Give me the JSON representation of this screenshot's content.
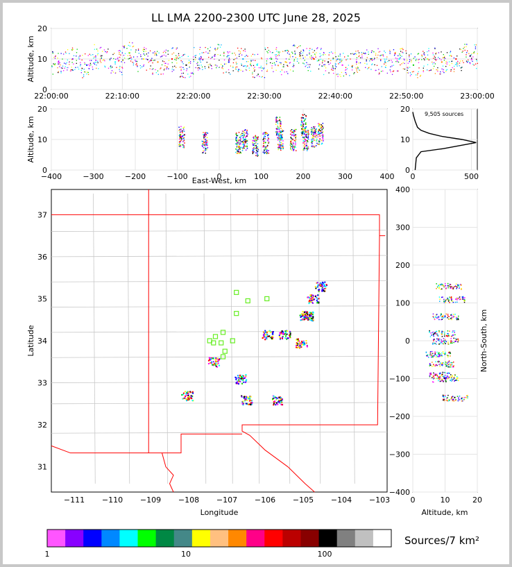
{
  "chart_data": [
    {
      "type": "scatter",
      "name": "time-height",
      "title": "LL LMA 2200-2300 UTC June 28, 2025",
      "ylabel": "Altitude, km",
      "xticks": [
        "22:00:00",
        "22:10:00",
        "22:20:00",
        "22:30:00",
        "22:40:00",
        "22:50:00",
        "23:00:00"
      ],
      "xlim_minutes": [
        0,
        60
      ],
      "ylim": [
        0,
        20
      ],
      "yticks": [
        0,
        10,
        20
      ],
      "points": [
        {
          "minute": 1,
          "alt": 9
        },
        {
          "minute": 3,
          "alt": 10
        },
        {
          "minute": 5,
          "alt": 8
        },
        {
          "minute": 7,
          "alt": 11
        },
        {
          "minute": 9,
          "alt": 9
        },
        {
          "minute": 11,
          "alt": 12
        },
        {
          "minute": 13,
          "alt": 10
        },
        {
          "minute": 15,
          "alt": 9
        },
        {
          "minute": 17,
          "alt": 10
        },
        {
          "minute": 19,
          "alt": 8
        },
        {
          "minute": 21,
          "alt": 10
        },
        {
          "minute": 23,
          "alt": 11
        },
        {
          "minute": 25,
          "alt": 9
        },
        {
          "minute": 27,
          "alt": 10
        },
        {
          "minute": 29,
          "alt": 8
        },
        {
          "minute": 31,
          "alt": 10
        },
        {
          "minute": 33,
          "alt": 9
        },
        {
          "minute": 35,
          "alt": 11
        },
        {
          "minute": 37,
          "alt": 10
        },
        {
          "minute": 39,
          "alt": 9
        },
        {
          "minute": 41,
          "alt": 8
        },
        {
          "minute": 43,
          "alt": 9
        },
        {
          "minute": 45,
          "alt": 10
        },
        {
          "minute": 47,
          "alt": 9
        },
        {
          "minute": 49,
          "alt": 10
        },
        {
          "minute": 51,
          "alt": 8
        },
        {
          "minute": 53,
          "alt": 10
        },
        {
          "minute": 55,
          "alt": 9
        },
        {
          "minute": 57,
          "alt": 10
        },
        {
          "minute": 59,
          "alt": 11
        }
      ]
    },
    {
      "type": "scatter",
      "name": "east-west-altitude",
      "xlabel": "East-West, km",
      "ylabel": "Altitude, km",
      "xlim": [
        -400,
        400
      ],
      "xticks": [
        -400,
        -300,
        -200,
        -100,
        0,
        100,
        200,
        300,
        400
      ],
      "ylim": [
        0,
        20
      ],
      "yticks": [
        0,
        10,
        20
      ],
      "points": [
        {
          "x": -90,
          "alt": 11
        },
        {
          "x": -35,
          "alt": 9
        },
        {
          "x": 45,
          "alt": 9
        },
        {
          "x": 60,
          "alt": 10
        },
        {
          "x": 85,
          "alt": 8
        },
        {
          "x": 110,
          "alt": 9
        },
        {
          "x": 140,
          "alt": 14
        },
        {
          "x": 145,
          "alt": 10
        },
        {
          "x": 175,
          "alt": 10
        },
        {
          "x": 200,
          "alt": 15
        },
        {
          "x": 205,
          "alt": 10
        },
        {
          "x": 225,
          "alt": 11
        },
        {
          "x": 240,
          "alt": 12
        }
      ]
    },
    {
      "type": "line",
      "name": "altitude-histogram",
      "annotation": "9,505 sources",
      "xlim": [
        0,
        550
      ],
      "xticks": [
        0,
        500
      ],
      "ylim": [
        0,
        20
      ],
      "yticks": [
        0,
        10,
        20
      ],
      "profile": [
        {
          "count": 20,
          "alt": 0
        },
        {
          "count": 30,
          "alt": 4
        },
        {
          "count": 70,
          "alt": 6
        },
        {
          "count": 260,
          "alt": 7
        },
        {
          "count": 400,
          "alt": 8
        },
        {
          "count": 540,
          "alt": 9
        },
        {
          "count": 420,
          "alt": 10
        },
        {
          "count": 250,
          "alt": 11
        },
        {
          "count": 140,
          "alt": 12
        },
        {
          "count": 70,
          "alt": 13
        },
        {
          "count": 40,
          "alt": 14
        },
        {
          "count": 20,
          "alt": 16
        },
        {
          "count": 5,
          "alt": 18
        },
        {
          "count": 0,
          "alt": 19
        }
      ]
    },
    {
      "type": "scatter",
      "name": "plan-view-map",
      "xlabel": "Longitude",
      "ylabel": "Latitude",
      "xlim": [
        -111.6,
        -102.8
      ],
      "xticks": [
        -111,
        -110,
        -109,
        -108,
        -107,
        -106,
        -105,
        -104,
        -103
      ],
      "ylim": [
        30.4,
        37.6
      ],
      "yticks": [
        31,
        32,
        33,
        34,
        35,
        36,
        37
      ],
      "clusters": [
        {
          "lon": -108.05,
          "lat": 32.7
        },
        {
          "lon": -107.35,
          "lat": 33.5
        },
        {
          "lon": -106.65,
          "lat": 33.1
        },
        {
          "lon": -106.5,
          "lat": 32.6
        },
        {
          "lon": -105.95,
          "lat": 34.15
        },
        {
          "lon": -105.5,
          "lat": 34.15
        },
        {
          "lon": -105.7,
          "lat": 32.6
        },
        {
          "lon": -105.05,
          "lat": 33.95
        },
        {
          "lon": -104.9,
          "lat": 34.6
        },
        {
          "lon": -104.75,
          "lat": 35.0
        },
        {
          "lon": -104.55,
          "lat": 35.3
        },
        {
          "lon": -104.95,
          "lat": 34.6
        }
      ],
      "stations": [
        {
          "lon": -106.75,
          "lat": 35.15
        },
        {
          "lon": -106.45,
          "lat": 34.95
        },
        {
          "lon": -105.95,
          "lat": 35.0
        },
        {
          "lon": -106.75,
          "lat": 34.65
        },
        {
          "lon": -107.1,
          "lat": 34.2
        },
        {
          "lon": -107.3,
          "lat": 34.1
        },
        {
          "lon": -107.45,
          "lat": 34.0
        },
        {
          "lon": -107.15,
          "lat": 33.95
        },
        {
          "lon": -106.85,
          "lat": 34.0
        },
        {
          "lon": -107.05,
          "lat": 33.75
        },
        {
          "lon": -107.1,
          "lat": 33.62
        },
        {
          "lon": -107.35,
          "lat": 33.95
        }
      ]
    },
    {
      "type": "scatter",
      "name": "north-south-altitude",
      "xlabel": "Altitude, km",
      "ylabel": "North-South, km",
      "xlim": [
        0,
        20
      ],
      "xticks": [
        0,
        10,
        20
      ],
      "ylim": [
        -400,
        400
      ],
      "yticks": [
        -400,
        -300,
        -200,
        -100,
        0,
        100,
        200,
        300,
        400
      ],
      "points": [
        {
          "alt": 11,
          "y": 145
        },
        {
          "alt": 12,
          "y": 110
        },
        {
          "alt": 10,
          "y": 65
        },
        {
          "alt": 9,
          "y": 20
        },
        {
          "alt": 10,
          "y": 0
        },
        {
          "alt": 8,
          "y": -35
        },
        {
          "alt": 9,
          "y": -60
        },
        {
          "alt": 9,
          "y": -90
        },
        {
          "alt": 10,
          "y": -100
        },
        {
          "alt": 13,
          "y": -150
        }
      ]
    }
  ],
  "colorbar": {
    "label": "Sources/7 km²",
    "tick_labels": [
      "1",
      "10",
      "100"
    ],
    "colors": [
      "#ff55ff",
      "#8800ff",
      "#0000ff",
      "#0088ff",
      "#00ffff",
      "#00ff00",
      "#008844",
      "#448888",
      "#ffff00",
      "#ffc080",
      "#ff8800",
      "#ff0088",
      "#ff0000",
      "#bb0000",
      "#880000",
      "#000000",
      "#808080",
      "#c0c0c0",
      "#ffffff"
    ]
  },
  "scatter_colors": [
    "#ff00ff",
    "#8800ff",
    "#0000ff",
    "#00aaff",
    "#00ffff",
    "#00cc00",
    "#ffff00",
    "#ff8800",
    "#ff0000",
    "#000000"
  ],
  "map_colors": {
    "state_border": "#ff0000",
    "county_border": "#c8c8c8",
    "station": "#66ee22"
  }
}
